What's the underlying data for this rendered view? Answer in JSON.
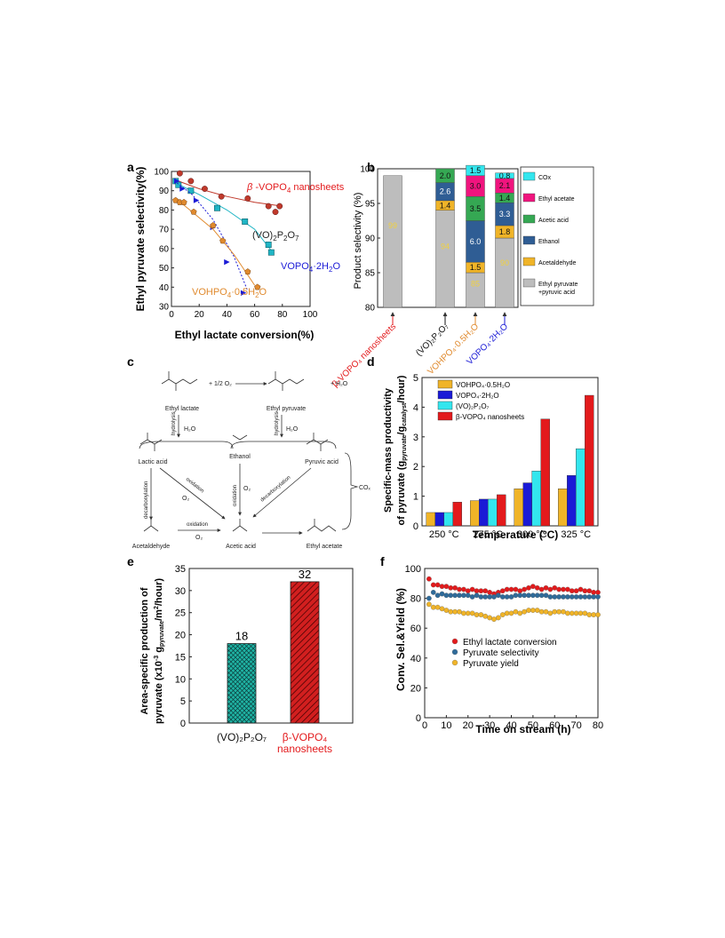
{
  "panel_letters": [
    "a",
    "b",
    "c",
    "d",
    "e",
    "f"
  ],
  "colors": {
    "red": "#e31a1c",
    "dark_red": "#b22222",
    "teal": "#1fb5c5",
    "cyan": "#33e6ee",
    "blue": "#1a1ad6",
    "orange": "#e08a2e",
    "gold": "#f0b428",
    "gray": "#bdbdbd",
    "green": "#35a853",
    "pink": "#f0147e",
    "steel": "#2f5d94"
  },
  "chart_data": [
    {
      "panel": "a",
      "type": "scatter",
      "xlabel": "Ethyl lactate conversion(%)",
      "ylabel": "Ethyl pyruvate selectivity(%)",
      "xlim": [
        0,
        100
      ],
      "ylim": [
        30,
        100
      ],
      "xticks": [
        0,
        20,
        40,
        60,
        80,
        100
      ],
      "yticks": [
        30,
        40,
        50,
        60,
        70,
        80,
        90,
        100
      ],
      "series": [
        {
          "name": "β-VOPO₄ nanosheets",
          "name_html": "β-VOPO<tspan font-size='8' dy='3'>4</tspan><tspan dy='-3'> nanosheets</tspan>",
          "color": "#c0392b",
          "marker": "circle",
          "points": [
            [
              6,
              99
            ],
            [
              14,
              95
            ],
            [
              24,
              91
            ],
            [
              36,
              87
            ],
            [
              55,
              86
            ],
            [
              70,
              82
            ],
            [
              75,
              79
            ],
            [
              78,
              82
            ]
          ],
          "fit": [
            [
              5,
              95
            ],
            [
              20,
              91
            ],
            [
              40,
              87
            ],
            [
              60,
              84
            ],
            [
              80,
              82
            ]
          ]
        },
        {
          "name": "(VO)₂P₂O₇",
          "name_html": "(VO)<tspan font-size='8' dy='3'>2</tspan><tspan dy='-3'>P</tspan><tspan font-size='8' dy='3'>2</tspan><tspan dy='-3'>O</tspan><tspan font-size='8' dy='3'>7</tspan>",
          "color": "#1fb5c5",
          "marker": "square",
          "points": [
            [
              3,
              95
            ],
            [
              5,
              93
            ],
            [
              14,
              90
            ],
            [
              33,
              81
            ],
            [
              53,
              74
            ],
            [
              70,
              62
            ],
            [
              72,
              58
            ]
          ],
          "fit": [
            [
              3,
              94
            ],
            [
              20,
              88
            ],
            [
              40,
              80
            ],
            [
              60,
              70
            ],
            [
              72,
              59
            ]
          ]
        },
        {
          "name": "VOPO₄·2H₂O",
          "name_html": "VOPO<tspan font-size='8' dy='3'>4</tspan><tspan dy='-3'>·2H</tspan><tspan font-size='8' dy='3'>2</tspan><tspan dy='-3'>O</tspan>",
          "color": "#1a1ad6",
          "marker": "triangle",
          "points": [
            [
              4,
              95
            ],
            [
              8,
              91
            ],
            [
              18,
              85
            ],
            [
              30,
              71
            ],
            [
              40,
              53
            ],
            [
              52,
              37
            ]
          ],
          "fit": [
            [
              4,
              94
            ],
            [
              15,
              88
            ],
            [
              30,
              75
            ],
            [
              45,
              56
            ],
            [
              55,
              38
            ]
          ]
        },
        {
          "name": "VOHPO₄·0.5H₂O",
          "name_html": "VOHPO<tspan font-size='8' dy='3'>4</tspan><tspan dy='-3'>·0.5H</tspan><tspan font-size='8' dy='3'>2</tspan><tspan dy='-3'>O</tspan>",
          "color": "#e08a2e",
          "marker": "pentagon",
          "points": [
            [
              3,
              85
            ],
            [
              6,
              84
            ],
            [
              9,
              84
            ],
            [
              16,
              79
            ],
            [
              30,
              72
            ],
            [
              37,
              64
            ],
            [
              55,
              48
            ],
            [
              62,
              40
            ]
          ],
          "fit": [
            [
              3,
              86
            ],
            [
              15,
              79
            ],
            [
              30,
              70
            ],
            [
              45,
              57
            ],
            [
              60,
              41
            ]
          ]
        }
      ]
    },
    {
      "panel": "b",
      "type": "bar",
      "ylabel": "Product selectivity (%)",
      "ylim": [
        80,
        100
      ],
      "yticks": [
        80,
        85,
        90,
        95,
        100
      ],
      "categories": [
        "β-VOPO₄ nanosheets",
        "(VO)₂P₂O₇",
        "VOHPO₄·0.5H₂O",
        "VOPO₄·2H₂O"
      ],
      "category_colors": [
        "#e31a1c",
        "#111111",
        "#e08a2e",
        "#1a1ad6"
      ],
      "segments_order": [
        "Ethyl pyruvate +pyruvic acid",
        "Acetaldehyde",
        "Ethanol",
        "Acetic acid",
        "Ethyl acetate",
        "COx"
      ],
      "legend": [
        {
          "label": "COx",
          "color": "#33e6ee"
        },
        {
          "label": "Ethyl acetate",
          "color": "#f0147e"
        },
        {
          "label": "Acetic acid",
          "color": "#35a853"
        },
        {
          "label": "Ethanol",
          "color": "#2f5d94"
        },
        {
          "label": "Acetaldehyde",
          "color": "#f0b428"
        },
        {
          "label": "Ethyl pyruvate +pyruvic acid",
          "color": "#bdbdbd"
        }
      ],
      "stacks": [
        {
          "Ethyl pyruvate +pyruvic acid": 99,
          "Acetaldehyde": 0,
          "Ethanol": 0,
          "Acetic acid": 0,
          "Ethyl acetate": 0,
          "COx": 0
        },
        {
          "Ethyl pyruvate +pyruvic acid": 94,
          "Acetaldehyde": 1.4,
          "Ethanol": 2.6,
          "Acetic acid": 2.0,
          "Ethyl acetate": 0,
          "COx": 0
        },
        {
          "Ethyl pyruvate +pyruvic acid": 85,
          "Acetaldehyde": 1.5,
          "Ethanol": 6.0,
          "Acetic acid": 3.5,
          "Ethyl acetate": 3.0,
          "COx": 1.5
        },
        {
          "Ethyl pyruvate +pyruvic acid": 90,
          "Acetaldehyde": 1.8,
          "Ethanol": 3.3,
          "Acetic acid": 1.4,
          "Ethyl acetate": 2.1,
          "COx": 0.8
        }
      ],
      "value_labels": [
        [
          "99",
          "",
          "",
          "",
          "",
          ""
        ],
        [
          "94",
          "1.4",
          "2.6",
          "2.0",
          "",
          ""
        ],
        [
          "85",
          "1.5",
          "6.0",
          "3.5",
          "3.0",
          "1.5"
        ],
        [
          "90",
          "1.8",
          "3.3",
          "1.4",
          "2.1",
          "0.8"
        ]
      ]
    },
    {
      "panel": "d",
      "type": "bar",
      "ylabel": "Specific-mass productivity of pyruvate (g pyruvate/g catalyst/hour)",
      "xlabel": "Temperature (°C)",
      "ylim": [
        0,
        5
      ],
      "yticks": [
        0,
        1,
        2,
        3,
        4,
        5
      ],
      "categories": [
        "250 °C",
        "275 °C",
        "300 °C",
        "325 °C"
      ],
      "series": [
        {
          "name": "VOHPO₄·0.5H₂O",
          "color": "#f0b428",
          "values": [
            0.45,
            0.85,
            1.25,
            1.25
          ]
        },
        {
          "name": "VOPO₄·2H₂O",
          "color": "#1a1ad6",
          "values": [
            0.45,
            0.9,
            1.45,
            1.7
          ]
        },
        {
          "name": "(VO)₂P₂O₇",
          "color": "#33e6ee",
          "values": [
            0.45,
            0.9,
            1.85,
            2.6
          ]
        },
        {
          "name": "β-VOPO₄ nanosheets",
          "color": "#e31a1c",
          "values": [
            0.8,
            1.05,
            3.6,
            4.4
          ]
        }
      ]
    },
    {
      "panel": "e",
      "type": "bar",
      "ylabel": "Area-specific production of pyruvate (x10⁻³ g pyruvate/m²/hour)",
      "ylim": [
        0,
        35
      ],
      "yticks": [
        0,
        5,
        10,
        15,
        20,
        25,
        30,
        35
      ],
      "categories": [
        "(VO)₂P₂O₇",
        "β-VOPO₄ nanosheets"
      ],
      "category_colors": [
        "#111111",
        "#e31a1c"
      ],
      "values": [
        18,
        32
      ],
      "value_labels": [
        "18",
        "32"
      ],
      "fills": [
        "#1fb5a5",
        "#d21f1f"
      ]
    },
    {
      "panel": "f",
      "type": "scatter",
      "xlabel": "Time on stream (h)",
      "ylabel": "Conv. Sel.&Yield (%)",
      "xlim": [
        0,
        80
      ],
      "ylim": [
        0,
        100
      ],
      "xticks": [
        0,
        10,
        20,
        30,
        40,
        50,
        60,
        70,
        80
      ],
      "yticks": [
        0,
        20,
        40,
        60,
        80,
        100
      ],
      "series": [
        {
          "name": "Ethyl lactate conversion",
          "color": "#e31a1c",
          "points": [
            [
              2,
              93
            ],
            [
              4,
              89
            ],
            [
              6,
              89
            ],
            [
              8,
              88
            ],
            [
              10,
              88
            ],
            [
              12,
              87
            ],
            [
              14,
              87
            ],
            [
              16,
              86
            ],
            [
              18,
              86
            ],
            [
              20,
              85
            ],
            [
              22,
              86
            ],
            [
              24,
              85
            ],
            [
              26,
              85
            ],
            [
              28,
              85
            ],
            [
              30,
              84
            ],
            [
              32,
              83
            ],
            [
              34,
              84
            ],
            [
              36,
              85
            ],
            [
              38,
              86
            ],
            [
              40,
              86
            ],
            [
              42,
              86
            ],
            [
              44,
              85
            ],
            [
              46,
              86
            ],
            [
              48,
              87
            ],
            [
              50,
              88
            ],
            [
              52,
              87
            ],
            [
              54,
              86
            ],
            [
              56,
              87
            ],
            [
              58,
              86
            ],
            [
              60,
              87
            ],
            [
              62,
              86
            ],
            [
              64,
              86
            ],
            [
              66,
              86
            ],
            [
              68,
              85
            ],
            [
              70,
              85
            ],
            [
              72,
              86
            ],
            [
              74,
              85
            ],
            [
              76,
              85
            ],
            [
              78,
              84
            ],
            [
              80,
              84
            ]
          ]
        },
        {
          "name": "Pyruvate selectivity",
          "color": "#2f6b9a",
          "points": [
            [
              2,
              80
            ],
            [
              4,
              84
            ],
            [
              6,
              82
            ],
            [
              8,
              83
            ],
            [
              10,
              82
            ],
            [
              12,
              82
            ],
            [
              14,
              82
            ],
            [
              16,
              82
            ],
            [
              18,
              82
            ],
            [
              20,
              82
            ],
            [
              22,
              81
            ],
            [
              24,
              82
            ],
            [
              26,
              81
            ],
            [
              28,
              81
            ],
            [
              30,
              81
            ],
            [
              32,
              81
            ],
            [
              34,
              82
            ],
            [
              36,
              81
            ],
            [
              38,
              81
            ],
            [
              40,
              81
            ],
            [
              42,
              82
            ],
            [
              44,
              82
            ],
            [
              46,
              82
            ],
            [
              48,
              82
            ],
            [
              50,
              82
            ],
            [
              52,
              82
            ],
            [
              54,
              82
            ],
            [
              56,
              82
            ],
            [
              58,
              81
            ],
            [
              60,
              81
            ],
            [
              62,
              81
            ],
            [
              64,
              81
            ],
            [
              66,
              81
            ],
            [
              68,
              81
            ],
            [
              70,
              81
            ],
            [
              72,
              81
            ],
            [
              74,
              81
            ],
            [
              76,
              81
            ],
            [
              78,
              81
            ],
            [
              80,
              81
            ]
          ]
        },
        {
          "name": "Pyruvate yield",
          "color": "#f0b428",
          "points": [
            [
              2,
              76
            ],
            [
              4,
              74
            ],
            [
              6,
              74
            ],
            [
              8,
              73
            ],
            [
              10,
              72
            ],
            [
              12,
              71
            ],
            [
              14,
              71
            ],
            [
              16,
              71
            ],
            [
              18,
              70
            ],
            [
              20,
              70
            ],
            [
              22,
              70
            ],
            [
              24,
              69
            ],
            [
              26,
              69
            ],
            [
              28,
              68
            ],
            [
              30,
              67
            ],
            [
              32,
              66
            ],
            [
              34,
              67
            ],
            [
              36,
              69
            ],
            [
              38,
              70
            ],
            [
              40,
              70
            ],
            [
              42,
              71
            ],
            [
              44,
              70
            ],
            [
              46,
              71
            ],
            [
              48,
              72
            ],
            [
              50,
              72
            ],
            [
              52,
              72
            ],
            [
              54,
              71
            ],
            [
              56,
              71
            ],
            [
              58,
              70
            ],
            [
              60,
              71
            ],
            [
              62,
              71
            ],
            [
              64,
              71
            ],
            [
              66,
              70
            ],
            [
              68,
              70
            ],
            [
              70,
              70
            ],
            [
              72,
              70
            ],
            [
              74,
              70
            ],
            [
              76,
              69
            ],
            [
              78,
              69
            ],
            [
              80,
              69
            ]
          ]
        }
      ]
    }
  ],
  "scheme_c": {
    "compounds": [
      "Ethyl lactate",
      "Ethyl pyruvate",
      "Lactic acid",
      "Ethanol",
      "Pyruvic acid",
      "Acetaldehyde",
      "Acetic acid",
      "Ethyl acetate"
    ],
    "reagent_o2": "+ 1/2 O₂",
    "reagent_h2o": "+ H₂O",
    "h2o": "H₂O",
    "o2": "O₂",
    "cox": "COₓ",
    "arrow_labels": [
      "hydrolysis",
      "hydrolysis",
      "decarbonylation",
      "oxidation",
      "oxidation",
      "decarboxylation",
      "oxidation"
    ]
  }
}
